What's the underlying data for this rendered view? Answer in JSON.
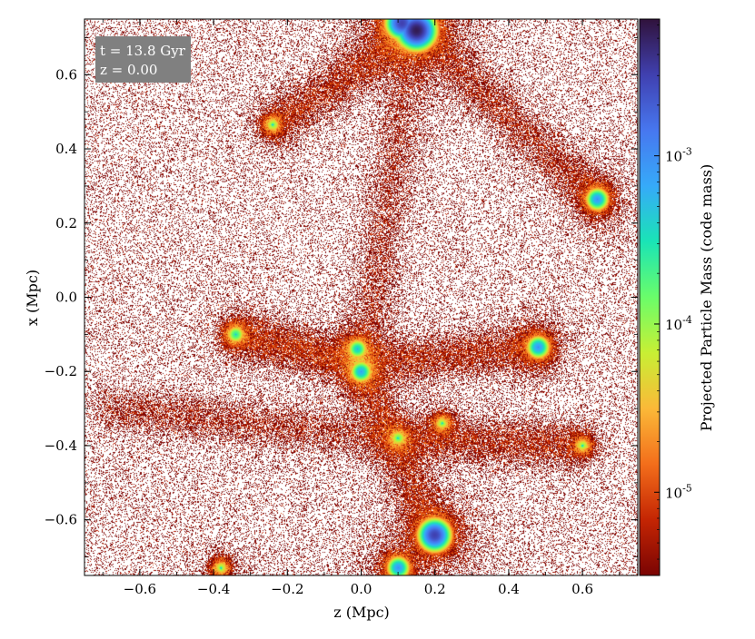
{
  "chart_data": {
    "type": "heatmap",
    "title": "",
    "xlabel": "z  (Mpc)",
    "ylabel": "x  (Mpc)",
    "xlim": [
      -0.75,
      0.75
    ],
    "ylim": [
      -0.75,
      0.75
    ],
    "x_ticks": [
      -0.6,
      -0.4,
      -0.2,
      0.0,
      0.2,
      0.4,
      0.6
    ],
    "x_tick_labels": [
      "−0.6",
      "−0.4",
      "−0.2",
      "0.0",
      "0.2",
      "0.4",
      "0.6"
    ],
    "y_ticks": [
      -0.6,
      -0.4,
      -0.2,
      0.0,
      0.2,
      0.4,
      0.6
    ],
    "y_tick_labels": [
      "−0.6",
      "−0.4",
      "−0.2",
      "0.0",
      "0.2",
      "0.4",
      "0.6"
    ],
    "colorbar": {
      "label": "Projected Particle Mass  (code mass)",
      "scale": "log",
      "range": [
        3.2e-06,
        0.0065
      ],
      "colormap": "turbo_r",
      "ticks": [
        {
          "value": 1e-05,
          "base": "10",
          "exp": "-5"
        },
        {
          "value": 0.0001,
          "base": "10",
          "exp": "-4"
        },
        {
          "value": 0.001,
          "base": "10",
          "exp": "-3"
        }
      ],
      "colors": [
        "#7a0403",
        "#c42503",
        "#f36e1b",
        "#fbb938",
        "#c8ef34",
        "#6afd6a",
        "#1ae4b6",
        "#36aaf9",
        "#4777ef",
        "#4040b0",
        "#30123b"
      ]
    },
    "annotation": {
      "lines": [
        "t = 13.8 Gyr",
        "z = 0.00"
      ],
      "background": "#808080"
    },
    "halos": [
      {
        "z": 0.15,
        "x": 0.72,
        "peak": 0.0055
      },
      {
        "z": 0.11,
        "x": 0.74,
        "peak": 0.003
      },
      {
        "z": 0.2,
        "x": -0.64,
        "peak": 0.003
      },
      {
        "z": 0.1,
        "x": -0.73,
        "peak": 0.0008
      },
      {
        "z": 0.64,
        "x": 0.265,
        "peak": 0.0008
      },
      {
        "z": 0.48,
        "x": -0.135,
        "peak": 0.0008
      },
      {
        "z": 0.0,
        "x": -0.2,
        "peak": 0.0006
      },
      {
        "z": -0.01,
        "x": -0.14,
        "peak": 0.0004
      },
      {
        "z": -0.34,
        "x": -0.1,
        "peak": 0.00025
      },
      {
        "z": 0.1,
        "x": -0.38,
        "peak": 0.00015
      },
      {
        "z": -0.24,
        "x": 0.465,
        "peak": 0.00012
      },
      {
        "z": 0.22,
        "x": -0.34,
        "peak": 0.0001
      },
      {
        "z": 0.6,
        "x": -0.4,
        "peak": 0.0001
      },
      {
        "z": -0.38,
        "x": -0.73,
        "peak": 0.0001
      }
    ],
    "grid": false
  }
}
